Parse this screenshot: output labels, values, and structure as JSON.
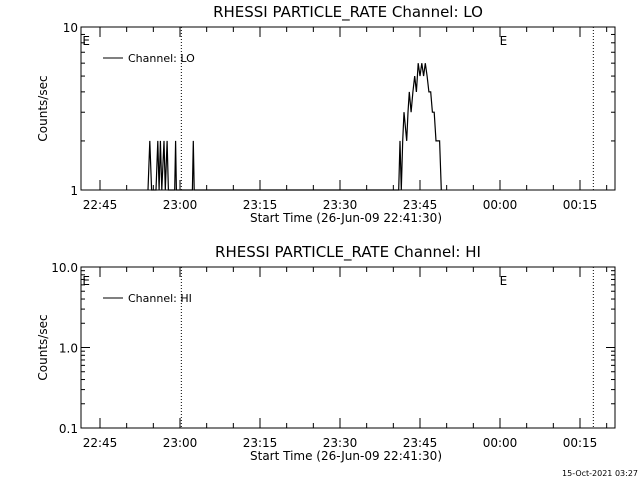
{
  "chart_data": [
    {
      "type": "line",
      "title": "RHESSI PARTICLE_RATE Channel: LO",
      "xlabel": "Start Time (26-Jun-09 22:41:30)",
      "ylabel": "Counts/sec",
      "y_scale": "log",
      "ylim": [
        1,
        10
      ],
      "y_ticks": [
        1,
        10
      ],
      "y_tick_labels": [
        "1",
        "10"
      ],
      "xlim_minutes": [
        22.8,
        23.0
      ],
      "x_ticks": [
        "22:45",
        "23:00",
        "23:15",
        "23:30",
        "23:45",
        "00:00",
        "00:15"
      ],
      "markers": [
        {
          "label": "E",
          "time": "22:41:30"
        },
        {
          "label": "E",
          "time": "23:59:45"
        }
      ],
      "dotted_lines": [
        "23:00:15",
        "00:17:30"
      ],
      "legend": {
        "placement": "top-left",
        "entries": [
          "Channel: LO"
        ]
      },
      "grid": false,
      "series": [
        {
          "name": "Channel: LO",
          "points": [
            [
              "22:54:00",
              1
            ],
            [
              "22:54:20",
              2
            ],
            [
              "22:54:40",
              1
            ],
            [
              "22:55:30",
              1
            ],
            [
              "22:55:50",
              2
            ],
            [
              "22:56:05",
              1
            ],
            [
              "22:56:20",
              2
            ],
            [
              "22:56:35",
              1
            ],
            [
              "22:57:00",
              2
            ],
            [
              "22:57:15",
              1
            ],
            [
              "22:57:35",
              2
            ],
            [
              "22:57:50",
              1
            ],
            [
              "22:59:00",
              1
            ],
            [
              "22:59:10",
              2
            ],
            [
              "22:59:20",
              1
            ],
            [
              "23:02:20",
              1
            ],
            [
              "23:02:30",
              2
            ],
            [
              "23:02:40",
              1
            ],
            [
              "23:41:00",
              1
            ],
            [
              "23:41:15",
              2
            ],
            [
              "23:41:30",
              1
            ],
            [
              "23:41:45",
              2
            ],
            [
              "23:42:00",
              3
            ],
            [
              "23:42:30",
              2
            ],
            [
              "23:42:45",
              3
            ],
            [
              "23:43:00",
              4
            ],
            [
              "23:43:20",
              3
            ],
            [
              "23:43:40",
              4
            ],
            [
              "23:44:00",
              5
            ],
            [
              "23:44:20",
              4
            ],
            [
              "23:44:40",
              6
            ],
            [
              "23:45:00",
              5
            ],
            [
              "23:45:20",
              6
            ],
            [
              "23:45:40",
              5
            ],
            [
              "23:46:00",
              6
            ],
            [
              "23:46:20",
              5
            ],
            [
              "23:46:40",
              4
            ],
            [
              "23:47:00",
              4
            ],
            [
              "23:47:20",
              3
            ],
            [
              "23:47:40",
              3
            ],
            [
              "23:48:00",
              2
            ],
            [
              "23:48:20",
              2
            ],
            [
              "23:48:40",
              2
            ],
            [
              "23:49:00",
              1
            ]
          ]
        }
      ]
    },
    {
      "type": "line",
      "title": "RHESSI PARTICLE_RATE Channel: HI",
      "xlabel": "Start Time (26-Jun-09 22:41:30)",
      "ylabel": "Counts/sec",
      "y_scale": "log",
      "ylim": [
        0.1,
        10
      ],
      "y_ticks": [
        0.1,
        1,
        10
      ],
      "y_tick_labels": [
        "0.1",
        "1.0",
        "10.0"
      ],
      "x_ticks": [
        "22:45",
        "23:00",
        "23:15",
        "23:30",
        "23:45",
        "00:00",
        "00:15"
      ],
      "markers": [
        {
          "label": "E",
          "time": "22:41:30"
        },
        {
          "label": "E",
          "time": "23:59:45"
        }
      ],
      "dotted_lines": [
        "23:00:15",
        "00:17:30"
      ],
      "legend": {
        "placement": "top-left",
        "entries": [
          "Channel: HI"
        ]
      },
      "grid": false,
      "series": [
        {
          "name": "Channel: HI",
          "points": []
        }
      ]
    }
  ],
  "footer": {
    "timestamp": "15-Oct-2021 03:27"
  }
}
